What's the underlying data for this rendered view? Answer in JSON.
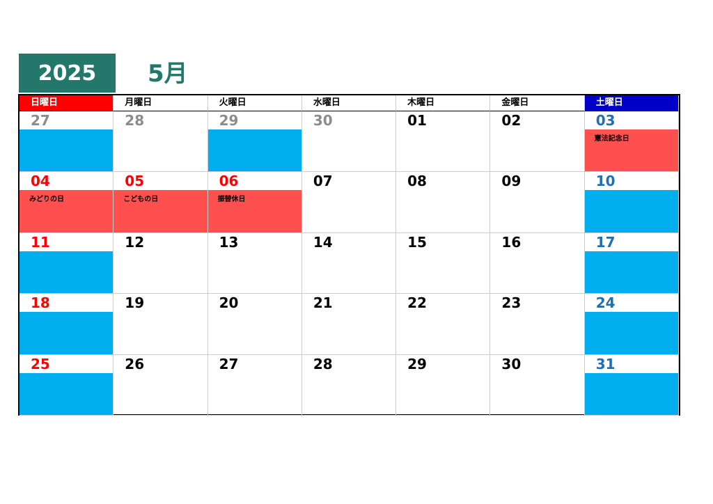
{
  "header": {
    "year": "2025",
    "month": "5月"
  },
  "weekdays": [
    "日曜日",
    "月曜日",
    "火曜日",
    "水曜日",
    "木曜日",
    "金曜日",
    "土曜日"
  ],
  "weeks": [
    [
      {
        "day": "27"
      },
      {
        "day": "28"
      },
      {
        "day": "29"
      },
      {
        "day": "30"
      },
      {
        "day": "01"
      },
      {
        "day": "02"
      },
      {
        "day": "03",
        "holiday": "憲法記念日"
      }
    ],
    [
      {
        "day": "04",
        "holiday": "みどりの日"
      },
      {
        "day": "05",
        "holiday": "こどもの日"
      },
      {
        "day": "06",
        "holiday": "振替休日"
      },
      {
        "day": "07"
      },
      {
        "day": "08"
      },
      {
        "day": "09"
      },
      {
        "day": "10"
      }
    ],
    [
      {
        "day": "11"
      },
      {
        "day": "12"
      },
      {
        "day": "13"
      },
      {
        "day": "14"
      },
      {
        "day": "15"
      },
      {
        "day": "16"
      },
      {
        "day": "17"
      }
    ],
    [
      {
        "day": "18"
      },
      {
        "day": "19"
      },
      {
        "day": "20"
      },
      {
        "day": "21"
      },
      {
        "day": "22"
      },
      {
        "day": "23"
      },
      {
        "day": "24"
      }
    ],
    [
      {
        "day": "25"
      },
      {
        "day": "26"
      },
      {
        "day": "27"
      },
      {
        "day": "28"
      },
      {
        "day": "29"
      },
      {
        "day": "30"
      },
      {
        "day": "31"
      }
    ]
  ]
}
